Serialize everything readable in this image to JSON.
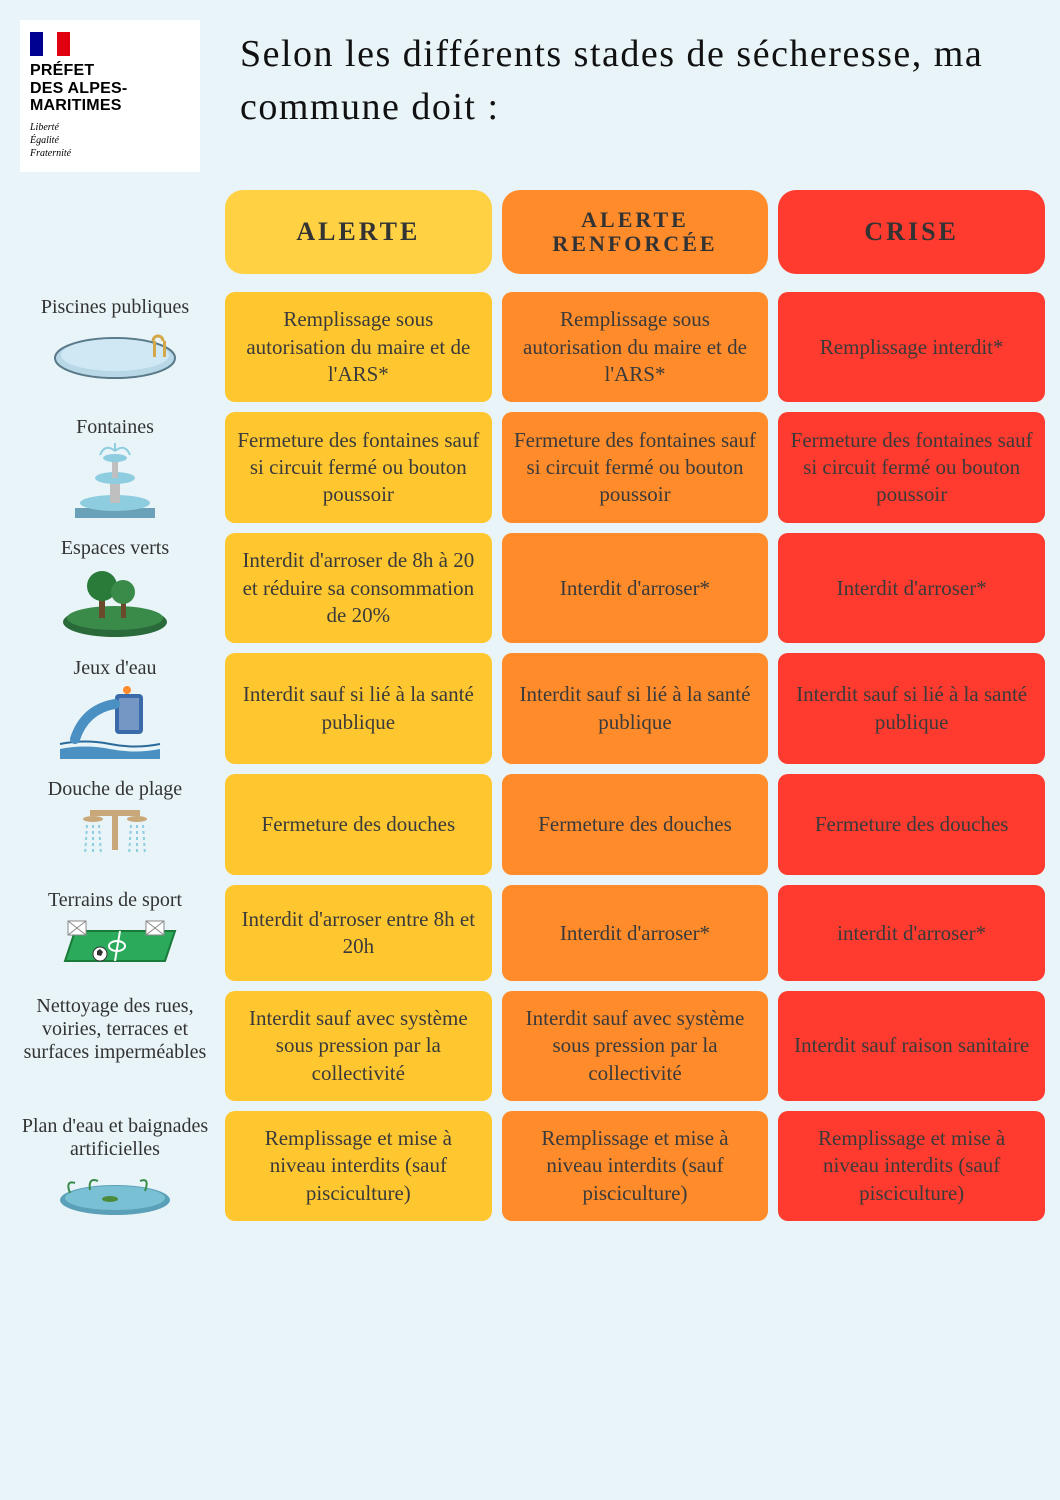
{
  "logo": {
    "title": "PRÉFET\nDES ALPES-\nMARITIMES",
    "motto": "Liberté\nÉgalité\nFraternité",
    "flag_colors": {
      "blue": "#000091",
      "white": "#ffffff",
      "red": "#e1000f"
    }
  },
  "title": "Selon les différents stades de sécheresse, ma commune doit :",
  "colors": {
    "page_bg": "#e8f4f8",
    "alerte_header": "#ffd143",
    "alerte_cell": "#ffc72f",
    "renforcee_header": "#ff8b2b",
    "renforcee_cell": "#ff8b2b",
    "crise_header": "#ff3a2e",
    "crise_cell": "#ff3a2e",
    "text": "#333333"
  },
  "levels": [
    {
      "id": "alerte",
      "label": "ALERTE"
    },
    {
      "id": "renforcee",
      "label": "ALERTE RENFORCÉE"
    },
    {
      "id": "crise",
      "label": "CRISE"
    }
  ],
  "rows": [
    {
      "id": "piscines",
      "label": "Piscines publiques",
      "cells": [
        "Remplissage sous autorisation du maire et de l'ARS*",
        "Remplissage sous autorisation du maire et de l'ARS*",
        "Remplissage interdit*"
      ]
    },
    {
      "id": "fontaines",
      "label": "Fontaines",
      "cells": [
        "Fermeture des fontaines sauf si circuit fermé ou bouton poussoir",
        "Fermeture des fontaines sauf si circuit fermé ou bouton poussoir",
        "Fermeture des fontaines sauf si circuit fermé ou bouton poussoir"
      ]
    },
    {
      "id": "espaces",
      "label": "Espaces verts",
      "cells": [
        "Interdit d'arroser de 8h à 20 et réduire sa consommation de 20%",
        "Interdit d'arroser*",
        "Interdit d'arroser*"
      ]
    },
    {
      "id": "jeux",
      "label": "Jeux d'eau",
      "cells": [
        "Interdit sauf si lié à la santé publique",
        "Interdit sauf si lié à la santé publique",
        "Interdit sauf si lié à la santé publique"
      ]
    },
    {
      "id": "douche",
      "label": "Douche de plage",
      "cells": [
        "Fermeture des douches",
        "Fermeture des douches",
        "Fermeture des douches"
      ]
    },
    {
      "id": "terrains",
      "label": "Terrains de sport",
      "cells": [
        "Interdit d'arroser entre 8h et 20h",
        "Interdit d'arroser*",
        "interdit d'arroser*"
      ]
    },
    {
      "id": "nettoyage",
      "label": "Nettoyage des rues, voiries, terraces et surfaces imperméables",
      "cells": [
        "Interdit sauf avec système sous pression par la collectivité",
        "Interdit sauf avec système sous pression par la collectivité",
        "Interdit sauf raison sanitaire"
      ]
    },
    {
      "id": "plan",
      "label": "Plan d'eau et baignades artificielles",
      "cells": [
        "Remplissage et mise à niveau interdits (sauf pisciculture)",
        "Remplissage et mise à niveau interdits (sauf pisciculture)",
        "Remplissage et mise à niveau interdits (sauf pisciculture)"
      ]
    }
  ]
}
